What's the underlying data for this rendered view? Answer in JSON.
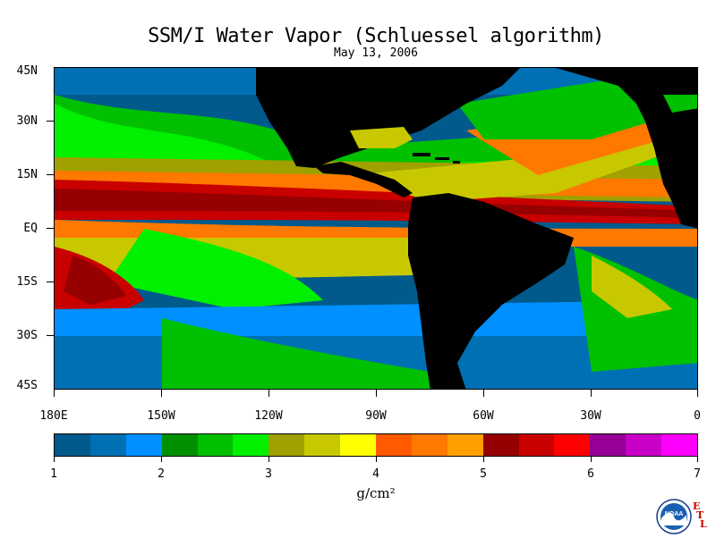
{
  "title": "SSM/I Water Vapor (Schluessel algorithm)",
  "subtitle": "May 13, 2006",
  "lat_labels": [
    "45N",
    "30N",
    "15N",
    "EQ",
    "15S",
    "30S",
    "45S"
  ],
  "lon_labels": [
    "180E",
    "150W",
    "120W",
    "90W",
    "60W",
    "30W",
    "0"
  ],
  "colorbar": {
    "colors": [
      "#005a8c",
      "#0070b4",
      "#0090ff",
      "#009000",
      "#00c000",
      "#00f000",
      "#a0a000",
      "#c8c800",
      "#ffff00",
      "#ff5a00",
      "#ff7800",
      "#ffa000",
      "#960000",
      "#c80000",
      "#ff0000",
      "#960096",
      "#c800c8",
      "#ff00ff"
    ],
    "tick_labels": [
      "1",
      "2",
      "3",
      "4",
      "5",
      "6",
      "7"
    ]
  },
  "units": "g/cm²",
  "logo": {
    "icon": "noaa-logo-icon",
    "text": "NOAA",
    "etl_letters": [
      "E",
      "T",
      "L"
    ]
  }
}
